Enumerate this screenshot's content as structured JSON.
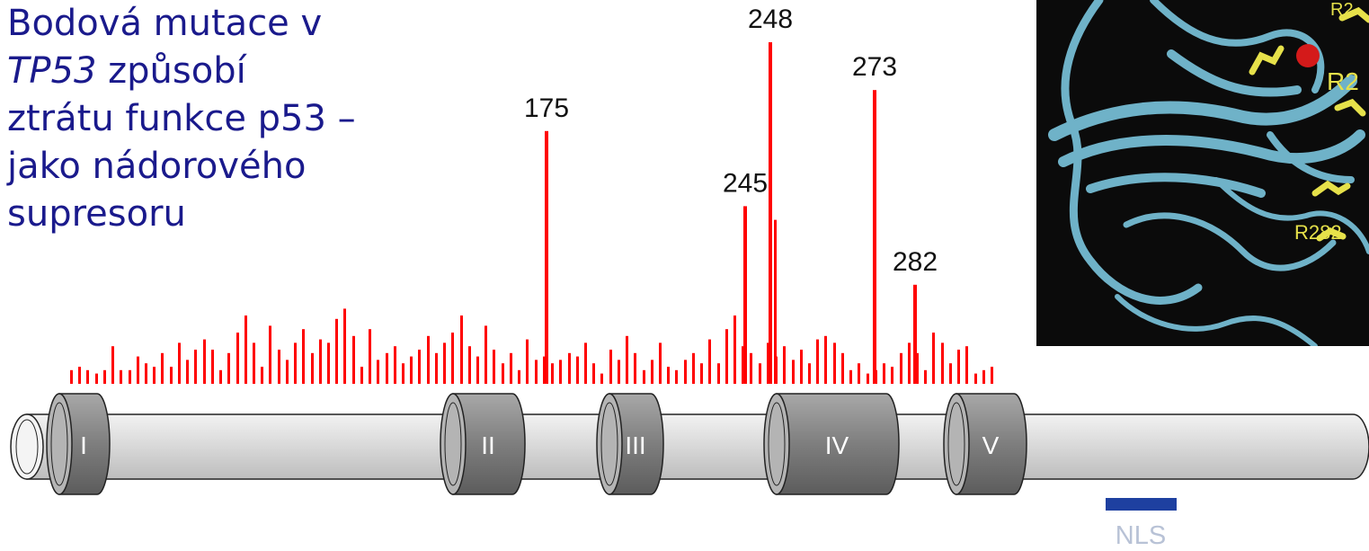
{
  "title": {
    "line1": "Bodová mutace v",
    "gene": "TP53",
    "line2_rest": " způsobí",
    "line3": "ztrátu funkce p53 –",
    "line4": "jako nádorového",
    "line5": "supresoru"
  },
  "chart_data": {
    "type": "bar",
    "labeled_hotspots": [
      {
        "codon": "175",
        "height": 0.74
      },
      {
        "codon": "245",
        "height": 0.52
      },
      {
        "codon": "248",
        "height": 1.0
      },
      {
        "codon": "273",
        "height": 0.86
      },
      {
        "codon": "282",
        "height": 0.29
      }
    ],
    "mutation_frequencies": [
      0.04,
      0.05,
      0.04,
      0.03,
      0.04,
      0.11,
      0.04,
      0.04,
      0.08,
      0.06,
      0.05,
      0.09,
      0.05,
      0.12,
      0.07,
      0.1,
      0.13,
      0.1,
      0.04,
      0.09,
      0.15,
      0.2,
      0.12,
      0.05,
      0.17,
      0.1,
      0.07,
      0.12,
      0.16,
      0.09,
      0.13,
      0.12,
      0.19,
      0.22,
      0.14,
      0.05,
      0.16,
      0.07,
      0.09,
      0.11,
      0.06,
      0.08,
      0.1,
      0.14,
      0.09,
      0.12,
      0.15,
      0.2,
      0.11,
      0.08,
      0.17,
      0.1,
      0.06,
      0.09,
      0.04,
      0.13,
      0.07,
      0.08,
      0.06,
      0.07,
      0.09,
      0.08,
      0.12,
      0.06,
      0.03,
      0.1,
      0.07,
      0.14,
      0.09,
      0.04,
      0.07,
      0.12,
      0.05,
      0.04,
      0.07,
      0.09,
      0.06,
      0.13,
      0.06,
      0.16,
      0.2,
      0.11,
      0.09,
      0.06,
      0.12,
      0.08,
      0.11,
      0.07,
      0.1,
      0.06,
      0.13,
      0.14,
      0.12,
      0.09,
      0.04,
      0.06,
      0.03,
      0.04,
      0.06,
      0.05,
      0.09,
      0.12,
      0.09,
      0.04,
      0.15,
      0.12,
      0.06,
      0.1,
      0.11,
      0.03,
      0.04,
      0.05
    ],
    "domains": [
      "I",
      "II",
      "III",
      "IV",
      "V"
    ],
    "nls_label": "NLS",
    "colors": {
      "bars": "#ff0000",
      "domain": "#8a8a8a",
      "tube": "#dcdcdc",
      "nls": "#1e40a0",
      "nls_text": "#b8c2d6"
    }
  },
  "structure": {
    "residue_labels": [
      "R2",
      "R2",
      "R282"
    ]
  }
}
